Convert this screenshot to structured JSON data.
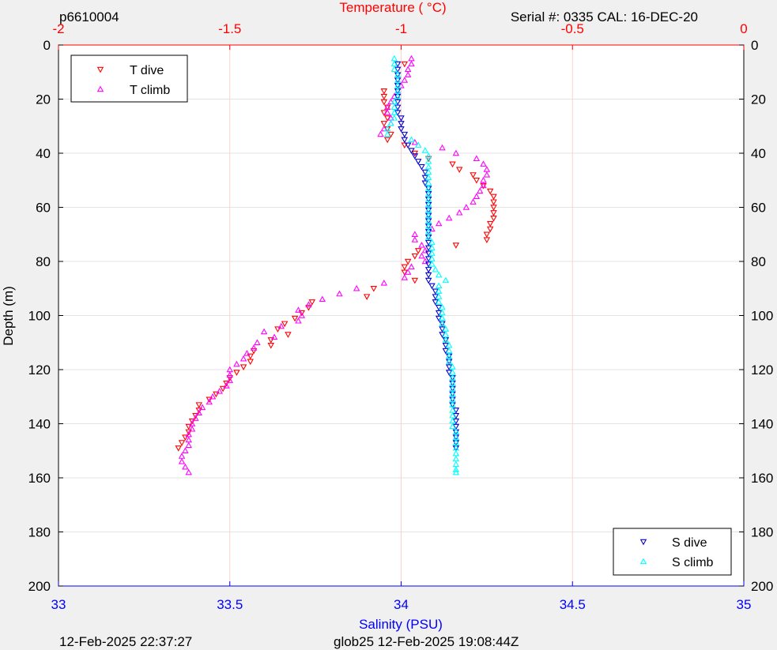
{
  "header": {
    "left_label": "p6610004",
    "right_label": "Serial #: 0335  CAL: 16-DEC-20"
  },
  "footer": {
    "left_label": "12-Feb-2025 22:37:27",
    "center_label": "glob25 12-Feb-2025 19:08:44Z"
  },
  "colors": {
    "temperature_axis": "#ff0000",
    "salinity_axis": "#0000ff",
    "t_dive": "#ff0000",
    "t_climb": "#ff00ff",
    "s_dive": "#0000cc",
    "s_climb": "#00ffff",
    "plot_bg": "#ffffff",
    "page_bg": "#f0f0f0"
  },
  "chart_data": {
    "type": "scatter",
    "top_axis": {
      "label": "Temperature (    °C)",
      "range": [
        -2,
        0
      ],
      "ticks": [
        -2,
        -1.5,
        -1,
        -0.5,
        0
      ],
      "tick_labels": [
        "-2",
        "-1.5",
        "-1",
        "-0.5",
        "0"
      ]
    },
    "bottom_axis": {
      "label": "Salinity (PSU)",
      "range": [
        33,
        35
      ],
      "ticks": [
        33,
        33.5,
        34,
        34.5,
        35
      ],
      "tick_labels": [
        "33",
        "33.5",
        "34",
        "34.5",
        "35"
      ]
    },
    "y_axis": {
      "label": "Depth (m)",
      "range": [
        0,
        200
      ],
      "reversed": true,
      "ticks": [
        0,
        20,
        40,
        60,
        80,
        100,
        120,
        140,
        160,
        180,
        200
      ],
      "tick_labels": [
        "0",
        "20",
        "40",
        "60",
        "80",
        "100",
        "120",
        "140",
        "160",
        "180",
        "200"
      ]
    },
    "grid": true,
    "legends": [
      {
        "placement": "top-left",
        "entries": [
          "T dive",
          "T climb"
        ]
      },
      {
        "placement": "bottom-right",
        "entries": [
          "S dive",
          "S climb"
        ]
      }
    ],
    "series": [
      {
        "name": "T dive",
        "axis": "temperature",
        "marker": "triangle-down",
        "points": [
          [
            -0.99,
            7
          ],
          [
            -1.05,
            17
          ],
          [
            -1.05,
            19
          ],
          [
            -1.05,
            21
          ],
          [
            -1.04,
            23
          ],
          [
            -1.05,
            25
          ],
          [
            -1.04,
            27
          ],
          [
            -1.05,
            29
          ],
          [
            -1.04,
            31
          ],
          [
            -1.03,
            33
          ],
          [
            -1.04,
            35
          ],
          [
            -0.99,
            37
          ],
          [
            -0.96,
            40
          ],
          [
            -0.92,
            42
          ],
          [
            -0.85,
            44
          ],
          [
            -0.83,
            46
          ],
          [
            -0.79,
            48
          ],
          [
            -0.78,
            50
          ],
          [
            -0.76,
            52
          ],
          [
            -0.74,
            54
          ],
          [
            -0.73,
            56
          ],
          [
            -0.73,
            58
          ],
          [
            -0.73,
            60
          ],
          [
            -0.73,
            62
          ],
          [
            -0.73,
            64
          ],
          [
            -0.74,
            66
          ],
          [
            -0.74,
            68
          ],
          [
            -0.75,
            70
          ],
          [
            -0.75,
            72
          ],
          [
            -0.84,
            74
          ],
          [
            -0.95,
            76
          ],
          [
            -0.96,
            78
          ],
          [
            -0.98,
            80
          ],
          [
            -0.99,
            82
          ],
          [
            -0.99,
            84
          ],
          [
            -0.96,
            87
          ],
          [
            -1.08,
            90
          ],
          [
            -1.1,
            93
          ],
          [
            -1.26,
            95
          ],
          [
            -1.27,
            97
          ],
          [
            -1.29,
            99
          ],
          [
            -1.31,
            101
          ],
          [
            -1.34,
            103
          ],
          [
            -1.36,
            105
          ],
          [
            -1.33,
            107
          ],
          [
            -1.38,
            109
          ],
          [
            -1.38,
            111
          ],
          [
            -1.43,
            113
          ],
          [
            -1.44,
            115
          ],
          [
            -1.44,
            117
          ],
          [
            -1.46,
            119
          ],
          [
            -1.48,
            121
          ],
          [
            -1.5,
            123
          ],
          [
            -1.51,
            125
          ],
          [
            -1.52,
            127
          ],
          [
            -1.54,
            129
          ],
          [
            -1.56,
            131
          ],
          [
            -1.59,
            133
          ],
          [
            -1.59,
            135
          ],
          [
            -1.6,
            137
          ],
          [
            -1.61,
            139
          ],
          [
            -1.62,
            141
          ],
          [
            -1.62,
            143
          ],
          [
            -1.63,
            145
          ],
          [
            -1.64,
            147
          ],
          [
            -1.65,
            149
          ]
        ]
      },
      {
        "name": "T climb",
        "axis": "temperature",
        "marker": "triangle-up",
        "points": [
          [
            -0.97,
            5
          ],
          [
            -0.97,
            7
          ],
          [
            -0.98,
            9
          ],
          [
            -0.98,
            11
          ],
          [
            -0.99,
            13
          ],
          [
            -1.0,
            15
          ],
          [
            -1.01,
            17
          ],
          [
            -1.02,
            19
          ],
          [
            -1.03,
            21
          ],
          [
            -1.04,
            23
          ],
          [
            -1.04,
            25
          ],
          [
            -1.03,
            27
          ],
          [
            -1.03,
            29
          ],
          [
            -1.05,
            31
          ],
          [
            -1.06,
            33
          ],
          [
            -0.96,
            36
          ],
          [
            -0.88,
            38
          ],
          [
            -0.84,
            40
          ],
          [
            -0.78,
            42
          ],
          [
            -0.76,
            44
          ],
          [
            -0.75,
            46
          ],
          [
            -0.75,
            48
          ],
          [
            -0.76,
            50
          ],
          [
            -0.76,
            52
          ],
          [
            -0.77,
            54
          ],
          [
            -0.78,
            56
          ],
          [
            -0.79,
            58
          ],
          [
            -0.81,
            60
          ],
          [
            -0.83,
            62
          ],
          [
            -0.86,
            64
          ],
          [
            -0.89,
            66
          ],
          [
            -0.91,
            68
          ],
          [
            -0.96,
            70
          ],
          [
            -0.96,
            72
          ],
          [
            -0.94,
            74
          ],
          [
            -0.93,
            76
          ],
          [
            -0.94,
            78
          ],
          [
            -0.93,
            80
          ],
          [
            -0.97,
            82
          ],
          [
            -0.98,
            84
          ],
          [
            -0.99,
            86
          ],
          [
            -1.05,
            88
          ],
          [
            -1.13,
            90
          ],
          [
            -1.18,
            92
          ],
          [
            -1.23,
            94
          ],
          [
            -1.27,
            96
          ],
          [
            -1.3,
            98
          ],
          [
            -1.29,
            100
          ],
          [
            -1.3,
            102
          ],
          [
            -1.35,
            104
          ],
          [
            -1.4,
            106
          ],
          [
            -1.37,
            108
          ],
          [
            -1.42,
            110
          ],
          [
            -1.43,
            112
          ],
          [
            -1.45,
            114
          ],
          [
            -1.46,
            116
          ],
          [
            -1.48,
            118
          ],
          [
            -1.5,
            120
          ],
          [
            -1.5,
            122
          ],
          [
            -1.5,
            124
          ],
          [
            -1.51,
            126
          ],
          [
            -1.53,
            128
          ],
          [
            -1.55,
            130
          ],
          [
            -1.56,
            132
          ],
          [
            -1.58,
            134
          ],
          [
            -1.59,
            136
          ],
          [
            -1.6,
            138
          ],
          [
            -1.61,
            140
          ],
          [
            -1.61,
            142
          ],
          [
            -1.62,
            144
          ],
          [
            -1.62,
            146
          ],
          [
            -1.62,
            148
          ],
          [
            -1.63,
            150
          ],
          [
            -1.64,
            152
          ],
          [
            -1.64,
            154
          ],
          [
            -1.63,
            156
          ],
          [
            -1.62,
            158
          ]
        ]
      },
      {
        "name": "S dive",
        "axis": "salinity",
        "marker": "triangle-down",
        "points": [
          [
            33.99,
            7
          ],
          [
            33.99,
            9
          ],
          [
            33.99,
            11
          ],
          [
            33.99,
            13
          ],
          [
            33.99,
            15
          ],
          [
            33.99,
            17
          ],
          [
            33.99,
            19
          ],
          [
            33.99,
            21
          ],
          [
            33.99,
            23
          ],
          [
            33.99,
            25
          ],
          [
            34.0,
            27
          ],
          [
            34.0,
            29
          ],
          [
            34.0,
            31
          ],
          [
            34.01,
            33
          ],
          [
            34.01,
            35
          ],
          [
            34.02,
            37
          ],
          [
            34.03,
            39
          ],
          [
            34.04,
            41
          ],
          [
            34.05,
            43
          ],
          [
            34.06,
            45
          ],
          [
            34.07,
            47
          ],
          [
            34.07,
            49
          ],
          [
            34.07,
            51
          ],
          [
            34.08,
            53
          ],
          [
            34.08,
            55
          ],
          [
            34.08,
            57
          ],
          [
            34.08,
            59
          ],
          [
            34.08,
            61
          ],
          [
            34.08,
            63
          ],
          [
            34.08,
            65
          ],
          [
            34.08,
            67
          ],
          [
            34.08,
            69
          ],
          [
            34.08,
            71
          ],
          [
            34.08,
            73
          ],
          [
            34.08,
            75
          ],
          [
            34.08,
            77
          ],
          [
            34.08,
            79
          ],
          [
            34.08,
            81
          ],
          [
            34.08,
            83
          ],
          [
            34.08,
            85
          ],
          [
            34.08,
            87
          ],
          [
            34.09,
            89
          ],
          [
            34.1,
            91
          ],
          [
            34.1,
            93
          ],
          [
            34.1,
            95
          ],
          [
            34.11,
            97
          ],
          [
            34.11,
            99
          ],
          [
            34.11,
            101
          ],
          [
            34.12,
            103
          ],
          [
            34.12,
            105
          ],
          [
            34.12,
            107
          ],
          [
            34.13,
            109
          ],
          [
            34.13,
            111
          ],
          [
            34.13,
            113
          ],
          [
            34.14,
            115
          ],
          [
            34.14,
            117
          ],
          [
            34.14,
            119
          ],
          [
            34.14,
            121
          ],
          [
            34.15,
            123
          ],
          [
            34.15,
            125
          ],
          [
            34.15,
            127
          ],
          [
            34.15,
            129
          ],
          [
            34.15,
            131
          ],
          [
            34.15,
            133
          ],
          [
            34.16,
            135
          ],
          [
            34.16,
            137
          ],
          [
            34.16,
            139
          ],
          [
            34.16,
            141
          ],
          [
            34.16,
            143
          ],
          [
            34.16,
            145
          ],
          [
            34.16,
            147
          ],
          [
            34.16,
            149
          ]
        ]
      },
      {
        "name": "S climb",
        "axis": "salinity",
        "marker": "triangle-up",
        "points": [
          [
            33.98,
            5
          ],
          [
            33.98,
            7
          ],
          [
            33.98,
            9
          ],
          [
            33.99,
            11
          ],
          [
            33.99,
            13
          ],
          [
            33.99,
            15
          ],
          [
            33.99,
            17
          ],
          [
            33.99,
            19
          ],
          [
            33.98,
            21
          ],
          [
            33.98,
            23
          ],
          [
            33.98,
            25
          ],
          [
            33.98,
            27
          ],
          [
            33.97,
            29
          ],
          [
            33.96,
            31
          ],
          [
            33.96,
            33
          ],
          [
            34.03,
            35
          ],
          [
            34.05,
            37
          ],
          [
            34.07,
            39
          ],
          [
            34.08,
            41
          ],
          [
            34.08,
            43
          ],
          [
            34.08,
            45
          ],
          [
            34.08,
            47
          ],
          [
            34.08,
            49
          ],
          [
            34.08,
            51
          ],
          [
            34.08,
            53
          ],
          [
            34.08,
            55
          ],
          [
            34.08,
            57
          ],
          [
            34.08,
            59
          ],
          [
            34.08,
            61
          ],
          [
            34.08,
            63
          ],
          [
            34.08,
            65
          ],
          [
            34.08,
            67
          ],
          [
            34.08,
            69
          ],
          [
            34.08,
            71
          ],
          [
            34.09,
            73
          ],
          [
            34.09,
            75
          ],
          [
            34.09,
            77
          ],
          [
            34.09,
            79
          ],
          [
            34.09,
            81
          ],
          [
            34.1,
            83
          ],
          [
            34.11,
            85
          ],
          [
            34.13,
            87
          ],
          [
            34.11,
            89
          ],
          [
            34.11,
            91
          ],
          [
            34.11,
            93
          ],
          [
            34.11,
            95
          ],
          [
            34.12,
            97
          ],
          [
            34.12,
            99
          ],
          [
            34.12,
            101
          ],
          [
            34.12,
            103
          ],
          [
            34.13,
            105
          ],
          [
            34.13,
            107
          ],
          [
            34.13,
            109
          ],
          [
            34.14,
            111
          ],
          [
            34.14,
            113
          ],
          [
            34.14,
            115
          ],
          [
            34.14,
            117
          ],
          [
            34.15,
            119
          ],
          [
            34.15,
            121
          ],
          [
            34.15,
            123
          ],
          [
            34.15,
            125
          ],
          [
            34.15,
            127
          ],
          [
            34.15,
            129
          ],
          [
            34.15,
            131
          ],
          [
            34.15,
            133
          ],
          [
            34.15,
            135
          ],
          [
            34.15,
            137
          ],
          [
            34.15,
            139
          ],
          [
            34.15,
            141
          ],
          [
            34.16,
            143
          ],
          [
            34.16,
            145
          ],
          [
            34.16,
            147
          ],
          [
            34.16,
            149
          ],
          [
            34.16,
            151
          ],
          [
            34.16,
            153
          ],
          [
            34.16,
            155
          ],
          [
            34.16,
            157
          ],
          [
            34.16,
            158
          ]
        ]
      }
    ]
  }
}
